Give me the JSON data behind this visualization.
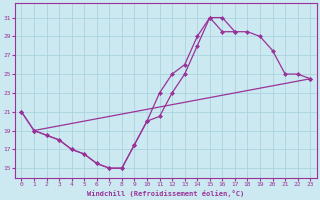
{
  "line_color": "#993399",
  "bg_color": "#cce8f0",
  "grid_color": "#b0d8e8",
  "yticks": [
    15,
    17,
    19,
    21,
    23,
    25,
    27,
    29,
    31
  ],
  "xticks": [
    0,
    1,
    2,
    3,
    4,
    5,
    6,
    7,
    8,
    9,
    10,
    11,
    12,
    13,
    14,
    15,
    16,
    17,
    18,
    19,
    20,
    21,
    22,
    23
  ],
  "xlabel": "Windchill (Refroidissement éolien,°C)",
  "xlim": [
    -0.5,
    23.5
  ],
  "ylim": [
    14.0,
    32.5
  ],
  "line1_x": [
    0,
    1,
    2,
    3,
    4,
    5,
    6,
    7,
    8,
    9,
    10,
    11,
    12,
    13,
    14,
    15,
    16,
    17
  ],
  "line1_y": [
    21,
    19,
    18.5,
    18,
    17,
    16.5,
    15.5,
    15,
    15,
    17.5,
    20,
    23,
    25,
    26,
    29,
    31,
    31,
    29.5
  ],
  "line2_x": [
    0,
    1,
    2,
    3,
    4,
    5,
    6,
    7,
    8,
    9,
    10,
    11,
    12,
    13,
    14,
    15,
    16,
    17,
    18,
    19,
    20,
    21,
    22,
    23
  ],
  "line2_y": [
    21,
    19,
    18.5,
    18,
    17,
    16.5,
    15.5,
    15,
    15,
    17.5,
    20,
    20.5,
    23,
    25,
    28,
    31,
    29.5,
    29.5,
    29.5,
    29,
    27.5,
    25,
    25,
    24.5
  ],
  "line3_x": [
    1,
    23
  ],
  "line3_y": [
    19,
    24.5
  ],
  "markersize": 2.5,
  "linewidth": 0.9
}
